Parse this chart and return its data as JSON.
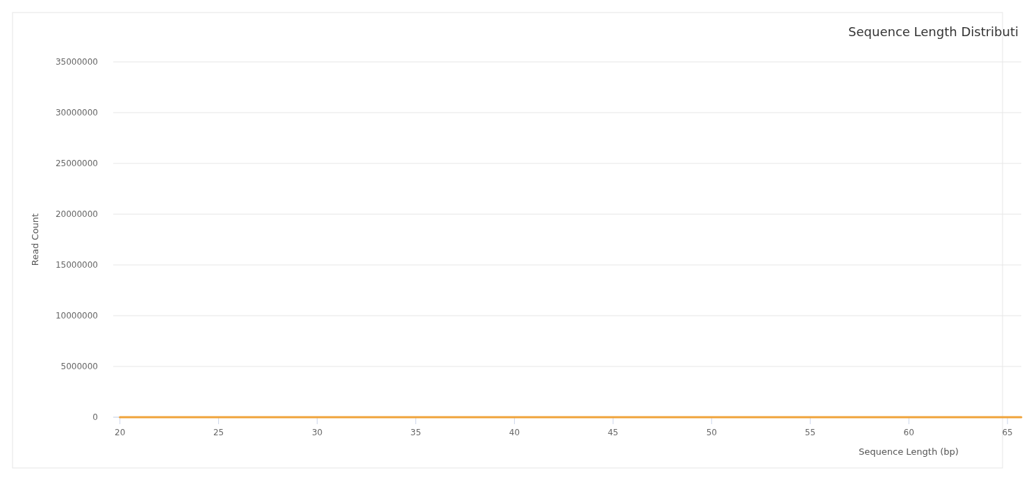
{
  "chart_data": {
    "type": "line",
    "title": "Sequence Length Distributi",
    "xlabel": "Sequence Length (bp)",
    "ylabel": "Read Count",
    "x": [
      20,
      65.7
    ],
    "series": [
      {
        "color": "#f0a33a",
        "values": [
          0,
          0
        ]
      }
    ],
    "xlim": [
      19.66,
      65.7
    ],
    "xticks": [
      20,
      25,
      30,
      35,
      40,
      45,
      50,
      55,
      60,
      65
    ],
    "ylim": [
      0,
      35000000
    ],
    "yticks": [
      0,
      5000000,
      10000000,
      15000000,
      20000000,
      25000000,
      30000000,
      35000000
    ],
    "grid": "y",
    "marker": "none",
    "line_style": "solid"
  }
}
